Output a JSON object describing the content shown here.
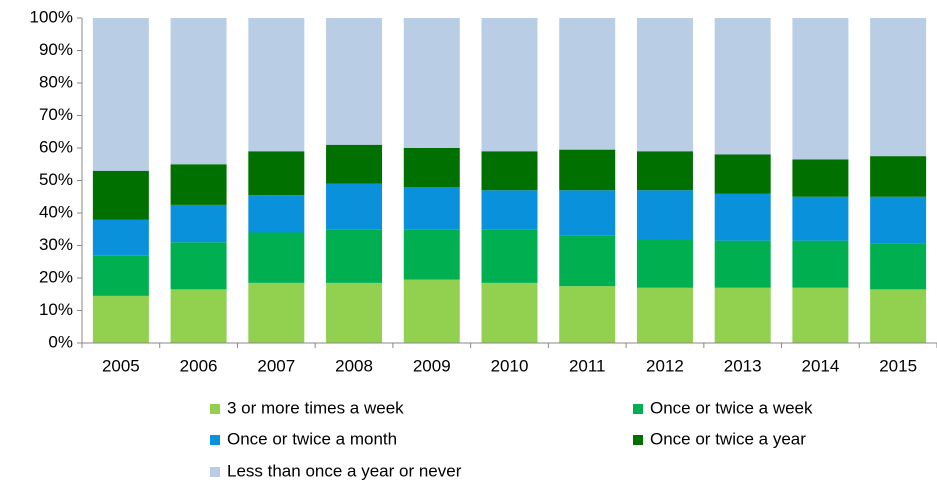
{
  "chart_data": {
    "type": "stacked_bar",
    "categories": [
      "2005",
      "2006",
      "2007",
      "2008",
      "2009",
      "2010",
      "2011",
      "2012",
      "2013",
      "2014",
      "2015"
    ],
    "series": [
      {
        "name": "3 or more times a week",
        "color": "#92d050",
        "values": [
          14.5,
          16.5,
          18.5,
          18.5,
          19.5,
          18.5,
          17.5,
          17,
          17,
          17,
          16.5
        ]
      },
      {
        "name": "Once or twice a week",
        "color": "#00b050",
        "values": [
          12.5,
          14.5,
          15.5,
          16.5,
          15.5,
          16.5,
          15.5,
          15,
          14.5,
          14.5,
          14
        ]
      },
      {
        "name": "Once or twice a month",
        "color": "#0a91dc",
        "values": [
          11,
          11.5,
          11.5,
          14,
          13,
          12,
          14,
          15,
          14.5,
          13.5,
          14.5
        ]
      },
      {
        "name": "Once or twice a year",
        "color": "#007000",
        "values": [
          15,
          12.5,
          13.5,
          12,
          12,
          12,
          12.5,
          12,
          12,
          11.5,
          12.5
        ]
      },
      {
        "name": "Less than once a year or never",
        "color": "#b9cde5",
        "values": [
          47,
          45,
          41,
          39,
          40,
          41,
          40.5,
          41,
          42,
          43.5,
          42.5
        ]
      }
    ],
    "ylim": [
      0,
      100
    ],
    "yticks": [
      {
        "value": 0,
        "label": "0%"
      },
      {
        "value": 10,
        "label": "10%"
      },
      {
        "value": 20,
        "label": "20%"
      },
      {
        "value": 30,
        "label": "30%"
      },
      {
        "value": 40,
        "label": "40%"
      },
      {
        "value": 50,
        "label": "50%"
      },
      {
        "value": 60,
        "label": "60%"
      },
      {
        "value": 70,
        "label": "70%"
      },
      {
        "value": 80,
        "label": "80%"
      },
      {
        "value": 90,
        "label": "90%"
      },
      {
        "value": 100,
        "label": "100%"
      }
    ]
  }
}
